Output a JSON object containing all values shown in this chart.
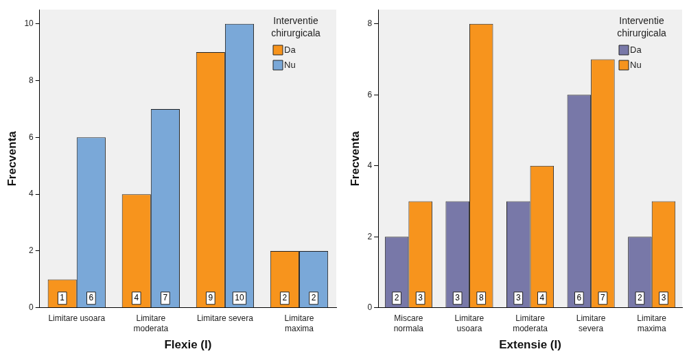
{
  "chart_data": [
    {
      "type": "bar",
      "xlabel": "Flexie (I)",
      "ylabel": "Frecventa",
      "legend_title": "Interventie chirurgicala",
      "categories": [
        "Limitare usoara",
        "Limitare moderata",
        "Limitare severa",
        "Limitare maxima"
      ],
      "series": [
        {
          "name": "Da",
          "color": "#f7941d",
          "values": [
            1,
            4,
            9,
            2
          ]
        },
        {
          "name": "Nu",
          "color": "#7aa8d8",
          "values": [
            6,
            7,
            10,
            2
          ]
        }
      ],
      "ylim": [
        0,
        10.5
      ],
      "yticks": [
        0,
        2,
        4,
        6,
        8,
        10
      ],
      "grid": false,
      "legend": "top right",
      "data_labels": true
    },
    {
      "type": "bar",
      "xlabel": "Extensie (I)",
      "ylabel": "Frecventa",
      "legend_title": "Interventie chirurgicala",
      "categories": [
        "Miscare normala",
        "Limitare usoara",
        "Limitare moderata",
        "Limitare severa",
        "Limitare maxima"
      ],
      "series": [
        {
          "name": "Da",
          "color": "#7878a8",
          "values": [
            2,
            3,
            3,
            6,
            2
          ]
        },
        {
          "name": "Nu",
          "color": "#f7941d",
          "values": [
            3,
            8,
            4,
            7,
            3
          ]
        }
      ],
      "ylim": [
        0,
        8.4
      ],
      "yticks": [
        0,
        2,
        4,
        6,
        8
      ],
      "grid": false,
      "legend": "top right",
      "data_labels": true
    }
  ]
}
